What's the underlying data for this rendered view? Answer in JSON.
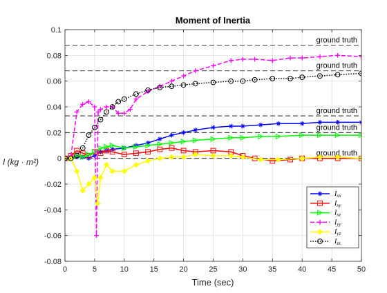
{
  "chart_data": {
    "type": "line",
    "title": "Moment of Inertia",
    "xlabel": "Time (sec)",
    "ylabel": "I (kg · m²)",
    "xlim": [
      0,
      50
    ],
    "ylim": [
      -0.08,
      0.1
    ],
    "grid": true,
    "legend_position": "bottom-right",
    "x_ticks": [
      0,
      5,
      10,
      15,
      20,
      25,
      30,
      35,
      40,
      45,
      50
    ],
    "y_ticks": [
      -0.08,
      -0.06,
      -0.04,
      -0.02,
      0,
      0.02,
      0.04,
      0.06,
      0.08,
      0.1
    ],
    "y_tick_labels": [
      "-0.08",
      "-0.06",
      "-0.04",
      "-0.02",
      "0",
      "0.02",
      "0.04",
      "0.06",
      "0.08",
      "0.1"
    ],
    "reference_lines": [
      {
        "label": "ground truth",
        "y": 0.088
      },
      {
        "label": "ground truth",
        "y": 0.068
      },
      {
        "label": "ground truth",
        "y": 0.033
      },
      {
        "label": "ground truth",
        "y": 0.02
      },
      {
        "label": "ground truth",
        "y": 0.0
      }
    ],
    "series": [
      {
        "name": "Ixx",
        "sub": "xx",
        "color": "#0000ff",
        "marker": "asterisk",
        "dash": "solid",
        "x": [
          0,
          1,
          2,
          3,
          4,
          5,
          6,
          7,
          8,
          10,
          12,
          14,
          16,
          18,
          20,
          22,
          25,
          28,
          30,
          33,
          36,
          40,
          43,
          46,
          50
        ],
        "y": [
          0,
          0,
          0.001,
          0.001,
          0,
          0.002,
          0.005,
          0.006,
          0.007,
          0.008,
          0.01,
          0.012,
          0.015,
          0.018,
          0.02,
          0.022,
          0.024,
          0.025,
          0.025,
          0.026,
          0.027,
          0.027,
          0.028,
          0.028,
          0.028
        ]
      },
      {
        "name": "Ixy",
        "sub": "xy",
        "color": "#ff0000",
        "marker": "square",
        "dash": "solid",
        "x": [
          0,
          1,
          2,
          3,
          4,
          5,
          6,
          7,
          8,
          10,
          12,
          14,
          16,
          18,
          20,
          22,
          25,
          28,
          30,
          32,
          35,
          38,
          40,
          43,
          46,
          50
        ],
        "y": [
          0,
          0.002,
          0.006,
          0.004,
          0.002,
          0.005,
          0.004,
          0.006,
          0.005,
          0.003,
          0.004,
          0.005,
          0.007,
          0.008,
          0.006,
          0.005,
          0.006,
          0.005,
          0.002,
          0,
          -0.002,
          -0.001,
          0,
          0,
          0,
          0
        ]
      },
      {
        "name": "Ixz",
        "sub": "xz",
        "color": "#00ff00",
        "marker": "triangle-right",
        "dash": "solid",
        "x": [
          0,
          1,
          2,
          3,
          4,
          5,
          6,
          7,
          8,
          10,
          12,
          14,
          16,
          18,
          20,
          22,
          25,
          28,
          30,
          33,
          36,
          40,
          43,
          46,
          50
        ],
        "y": [
          0,
          0,
          0.002,
          0.001,
          0.003,
          0.005,
          0.008,
          0.009,
          0.01,
          0.008,
          0.009,
          0.01,
          0.011,
          0.012,
          0.013,
          0.014,
          0.015,
          0.016,
          0.016,
          0.017,
          0.017,
          0.018,
          0.018,
          0.018,
          0.018
        ]
      },
      {
        "name": "Iyy",
        "sub": "yy",
        "color": "#ff00ff",
        "marker": "plus",
        "dash": "dashed",
        "x": [
          0,
          1,
          2,
          3,
          4,
          5,
          5.3,
          5.6,
          6,
          7,
          8,
          9,
          10,
          11,
          12,
          14,
          16,
          18,
          20,
          22,
          25,
          28,
          30,
          32,
          35,
          38,
          40,
          43,
          46,
          50
        ],
        "y": [
          0,
          0.002,
          0.036,
          0.042,
          0.044,
          0.04,
          -0.06,
          0.036,
          0.038,
          0.04,
          0.04,
          0.035,
          0.035,
          0.038,
          0.046,
          0.052,
          0.056,
          0.06,
          0.064,
          0.068,
          0.072,
          0.076,
          0.077,
          0.077,
          0.076,
          0.078,
          0.078,
          0.079,
          0.08,
          0.079
        ]
      },
      {
        "name": "Iyz",
        "sub": "yz",
        "color": "#ffff00",
        "marker": "diamond",
        "dash": "solid",
        "x": [
          0,
          1,
          2,
          3,
          4,
          5,
          5.5,
          6,
          7,
          8,
          10,
          12,
          14,
          16,
          18,
          20,
          22,
          25,
          28,
          30,
          33,
          36,
          40,
          43,
          46,
          50
        ],
        "y": [
          0,
          0,
          -0.01,
          -0.025,
          -0.02,
          -0.015,
          -0.035,
          -0.015,
          -0.005,
          -0.01,
          -0.01,
          -0.005,
          -0.002,
          0,
          0.001,
          0.001,
          0.003,
          0.002,
          0.002,
          0.001,
          -0.001,
          -0.001,
          0,
          0.001,
          0.001,
          0
        ]
      },
      {
        "name": "Izz",
        "sub": "zz",
        "color": "#000000",
        "marker": "circle",
        "dash": "dotted",
        "x": [
          0,
          1,
          2,
          3,
          4,
          5,
          6,
          7,
          8,
          9,
          10,
          12,
          14,
          16,
          18,
          20,
          22,
          25,
          28,
          30,
          32,
          35,
          38,
          40,
          43,
          46,
          50
        ],
        "y": [
          0,
          0,
          0.002,
          0.008,
          0.018,
          0.024,
          0.03,
          0.036,
          0.04,
          0.044,
          0.046,
          0.05,
          0.053,
          0.055,
          0.056,
          0.057,
          0.058,
          0.059,
          0.06,
          0.06,
          0.061,
          0.062,
          0.062,
          0.063,
          0.064,
          0.065,
          0.066
        ]
      }
    ]
  }
}
